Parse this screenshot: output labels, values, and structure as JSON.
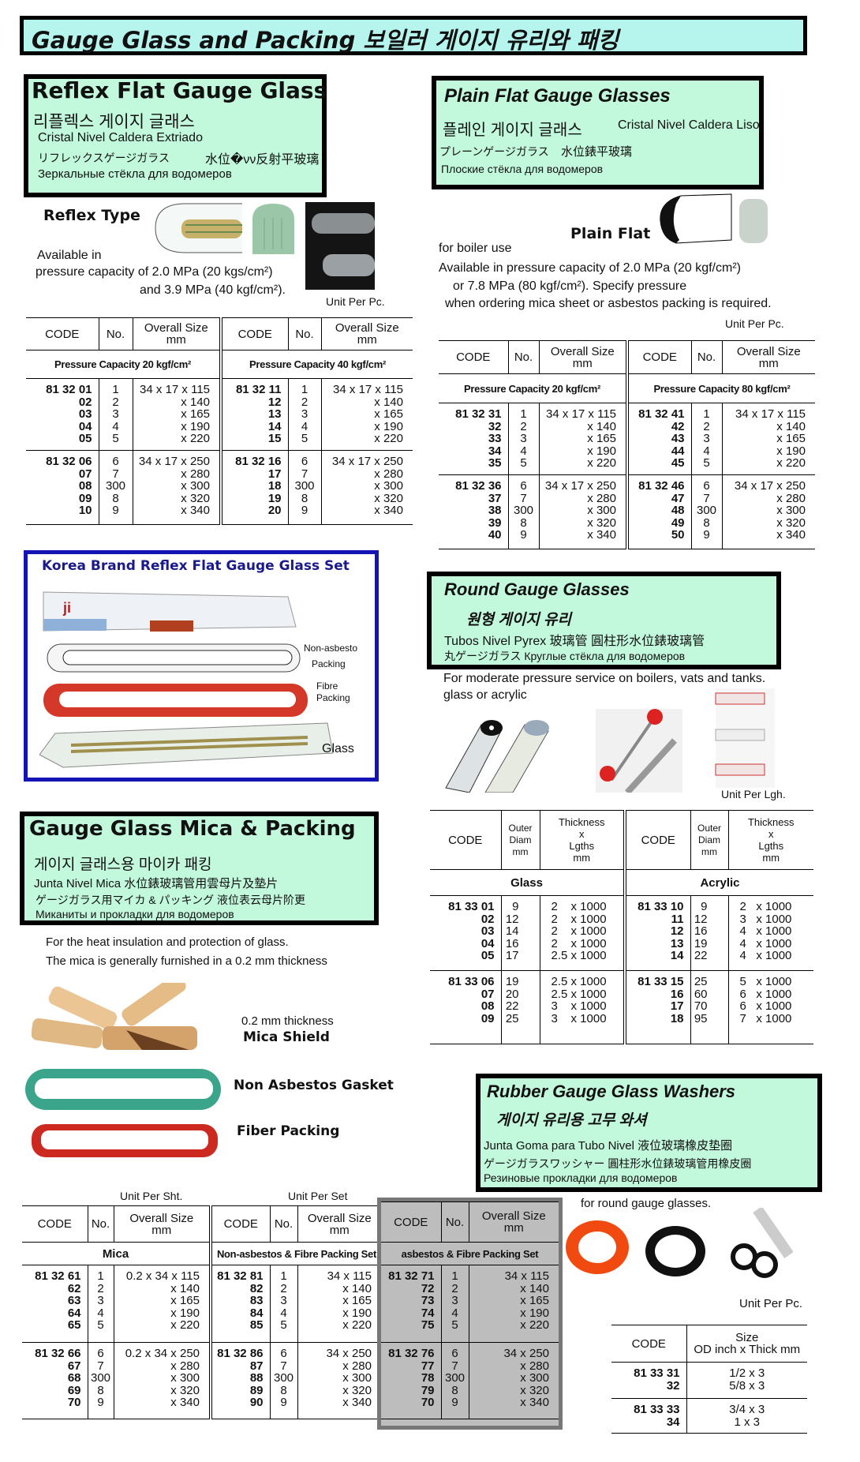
{
  "page_title": "Gauge Glass and Packing  보일러 게이지 유리와 패킹",
  "colors": {
    "title_bg": "#b5f5ee",
    "box_bg": "#c2f8dc",
    "korea_border": "#1414b4",
    "gray_table": "#bdbdbd"
  },
  "reflex": {
    "title": "Reflex Flat Gauge Glass",
    "korean": "리플렉스 게이지 글래스",
    "spanish": "Cristal Nivel Caldera Extriado",
    "japanese": "リフレックスゲージガラス",
    "chinese": "水位�νν反射平玻璃",
    "russian": "Зеркальные стёкла для водомеров",
    "type_label": "Reflex Type",
    "avail1": "Available  in",
    "avail2": "pressure capacity of 2.0 MPa  (20 kgs/cm²)",
    "avail3": "and 3.9 MPa (40 kgf/cm²).",
    "unit": "Unit Per Pc."
  },
  "plain": {
    "title": "Plain Flat Gauge Glasses",
    "korean": "플레인 게이지 글래스",
    "spanish": "Cristal Nivel Caldera Liso",
    "japanese": "プレーンゲージガラス",
    "chinese": "水位錶平玻璃",
    "russian": "Плоские стёкла для водомеров",
    "type_label": "Plain Flat",
    "line1": "for  boiler  use",
    "line2": "Available  in    pressure  capacity  of 2.0  MPa (20  kgf/cm²)",
    "line3": "or  7.8  MPa   (80 kgf/cm²). Specify pressure",
    "line4": "when ordering  mica sheet  or asbestos packing is required.",
    "unit": "Unit Per Pc."
  },
  "korea_set": {
    "title": "Korea Brand Reflex Flat Gauge Glass Set",
    "box_logo": "ji",
    "label_nonasbesto": "Non-asbesto",
    "label_packing1": "Packing",
    "label_fibre": "Fibre",
    "label_packing2": "Packing",
    "label_glass": "Glass"
  },
  "round": {
    "title": "Round Gauge Glasses",
    "korean": "원형 게이지 유리",
    "line1": "Tubos Nivel Pyrex   玻璃管  圓柱形水位錶玻璃管",
    "line2": "丸ゲージガラス  Круглые стёкла для водомеров",
    "desc1": "For  moderate pressure service on boilers, vats and tanks.",
    "desc2": "glass  or  acrylic",
    "unit": "Unit Per Lgh."
  },
  "mica": {
    "title": "Gauge Glass Mica & Packing",
    "korean": "게이지 글래스용 마이카 패킹",
    "line1": "Junta Nivel Mica  水位錶玻璃管用雲母片及墊片",
    "line2": "ゲージガラス用マイカ & パッキング  液位表云母片阶更",
    "russian": "Миканиты и прокладки для водомеров",
    "desc1": "For the heat insulation and protection of glass.",
    "desc2": "The mica is generally furnished in a 0.2 mm thickness",
    "thickness": "0.2 mm  thickness",
    "mica_shield": "Mica Shield",
    "gasket": "Non Asbestos Gasket",
    "fiber": "Fiber Packing",
    "unit_sht": "Unit Per Sht.",
    "unit_set": "Unit Per Set"
  },
  "rubber": {
    "title": "Rubber Gauge Glass Washers",
    "korean": "게이지 유리용 고무 와셔",
    "line1": "Junta Goma para Tubo Nivel    液位玻璃橡皮垫圈",
    "line2": "ゲージガラスワッシャー        圓柱形水位錶玻璃管用橡皮圈",
    "russian": "Резиновые прокладки для водомеров",
    "desc": "for round gauge glasses.",
    "unit": "Unit Per Pc."
  },
  "tables": {
    "reflex": {
      "headers": [
        "CODE",
        "No.",
        "Overall Size\nmm",
        "CODE",
        "No.",
        "Overall Size\nmm"
      ],
      "subheaders": [
        "Pressure Capacity 20 kgf/cm²",
        "Pressure Capacity 40 kgf/cm²"
      ],
      "groups": [
        [
          [
            "81 32 01",
            "02",
            "03",
            "04",
            "05"
          ],
          [
            "1",
            "2",
            "3",
            "4",
            "5"
          ],
          [
            "34 x 17 x 115",
            "x 140",
            "x 165",
            "x 190",
            "x 220"
          ],
          [
            "81 32 11",
            "12",
            "13",
            "14",
            "15"
          ],
          [
            "1",
            "2",
            "3",
            "4",
            "5"
          ],
          [
            "34 x 17 x 115",
            "x 140",
            "x 165",
            "x 190",
            "x 220"
          ]
        ],
        [
          [
            "81 32 06",
            "07",
            "08",
            "09",
            "10"
          ],
          [
            "6",
            "7",
            "300",
            "8",
            "9"
          ],
          [
            "34 x 17 x 250",
            "x 280",
            "x 300",
            "x 320",
            "x 340"
          ],
          [
            "81 32 16",
            "17",
            "18",
            "19",
            "20"
          ],
          [
            "6",
            "7",
            "300",
            "8",
            "9"
          ],
          [
            "34 x 17 x 250",
            "x 280",
            "x 300",
            "x 320",
            "x 340"
          ]
        ]
      ]
    },
    "plain": {
      "headers": [
        "CODE",
        "No.",
        "Overall Size\nmm",
        "CODE",
        "No.",
        "Overall Size\nmm"
      ],
      "subheaders": [
        "Pressure  Capacity 20 kgf/cm²",
        "Pressure  Capacity 80 kgf/cm²"
      ],
      "groups": [
        [
          [
            "81 32 31",
            "32",
            "33",
            "34",
            "35"
          ],
          [
            "1",
            "2",
            "3",
            "4",
            "5"
          ],
          [
            "34 x 17 x 115",
            "x 140",
            "x 165",
            "x 190",
            "x 220"
          ],
          [
            "81 32 41",
            "42",
            "43",
            "44",
            "45"
          ],
          [
            "1",
            "2",
            "3",
            "4",
            "5"
          ],
          [
            "34 x 17 x 115",
            "x 140",
            "x 165",
            "x 190",
            "x 220"
          ]
        ],
        [
          [
            "81 32 36",
            "37",
            "38",
            "39",
            "40"
          ],
          [
            "6",
            "7",
            "300",
            "8",
            "9"
          ],
          [
            "34 x 17 x 250",
            "x 280",
            "x 300",
            "x 320",
            "x 340"
          ],
          [
            "81 32 46",
            "47",
            "48",
            "49",
            "50"
          ],
          [
            "6",
            "7",
            "300",
            "8",
            "9"
          ],
          [
            "34 x 17 x 250",
            "x 280",
            "x 300",
            "x 320",
            "x 340"
          ]
        ]
      ]
    },
    "round": {
      "headers": [
        "CODE",
        "Outer\nDiam\nmm",
        "Thickness\nx\nLgths\nmm",
        "CODE",
        "Outer\nDiam\nmm",
        "Thickness\nx\nLgths\nmm"
      ],
      "subheaders": [
        "Glass",
        "Acrylic"
      ],
      "groups": [
        [
          [
            "81 33 01",
            "02",
            "03",
            "04",
            "05"
          ],
          [
            "9",
            "12",
            "14",
            "16",
            "17"
          ],
          [
            "2    x 1000",
            "2    x 1000",
            "2    x 1000",
            "2    x 1000",
            "2.5 x 1000"
          ],
          [
            "81 33 10",
            "11",
            "12",
            "13",
            "14"
          ],
          [
            "9",
            "12",
            "16",
            "19",
            "22"
          ],
          [
            "2   x 1000",
            "3   x 1000",
            "4   x 1000",
            "4   x 1000",
            "4   x 1000"
          ]
        ],
        [
          [
            "81 33 06",
            "07",
            "08",
            "09"
          ],
          [
            "19",
            "20",
            "22",
            "25"
          ],
          [
            "2.5 x 1000",
            "2.5 x 1000",
            "3    x 1000",
            "3    x 1000"
          ],
          [
            "81 33 15",
            "16",
            "17",
            "18"
          ],
          [
            "25",
            "60",
            "70",
            "95"
          ],
          [
            "5   x 1000",
            "6   x 1000",
            "6   x 1000",
            "7   x 1000"
          ]
        ]
      ]
    },
    "mica": {
      "headers": [
        "CODE",
        "No.",
        "Overall Size\nmm",
        "CODE",
        "No.",
        "Overall Size\nmm"
      ],
      "subheaders": [
        "Mica",
        "Non-asbestos & Fibre Packing Set"
      ],
      "groups": [
        [
          [
            "81 32 61",
            "62",
            "63",
            "64",
            "65"
          ],
          [
            "1",
            "2",
            "3",
            "4",
            "5"
          ],
          [
            "0.2 x 34 x 115",
            "x 140",
            "x 165",
            "x 190",
            "x 220"
          ],
          [
            "81 32 81",
            "82",
            "83",
            "84",
            "85"
          ],
          [
            "1",
            "2",
            "3",
            "4",
            "5"
          ],
          [
            "34 x 115",
            "x 140",
            "x 165",
            "x 190",
            "x 220"
          ]
        ],
        [
          [
            "81 32 66",
            "67",
            "68",
            "69",
            "70"
          ],
          [
            "6",
            "7",
            "300",
            "8",
            "9"
          ],
          [
            "0.2 x 34 x 250",
            "x 280",
            "x 300",
            "x 320",
            "x 340"
          ],
          [
            "81 32 86",
            "87",
            "88",
            "89",
            "90"
          ],
          [
            "6",
            "7",
            "300",
            "8",
            "9"
          ],
          [
            "34 x 250",
            "x 280",
            "x 300",
            "x 320",
            "x 340"
          ]
        ]
      ]
    },
    "asbestos": {
      "headers": [
        "CODE",
        "No.",
        "Overall Size\nmm"
      ],
      "subheaders": [
        "asbestos &  Fibre Packing Set"
      ],
      "groups": [
        [
          [
            "81 32 71",
            "72",
            "73",
            "74",
            "75"
          ],
          [
            "1",
            "2",
            "3",
            "4",
            "5"
          ],
          [
            "34 x 115",
            "x 140",
            "x 165",
            "x 190",
            "x 220"
          ]
        ],
        [
          [
            "81 32 76",
            "77",
            "78",
            "79",
            "70"
          ],
          [
            "6",
            "7",
            "300",
            "8",
            "9"
          ],
          [
            "34 x 250",
            "x 280",
            "x 300",
            "x 320",
            "x 340"
          ]
        ]
      ]
    },
    "washers": {
      "headers": [
        "CODE",
        "Size\nOD inch x Thick mm"
      ],
      "subheaders": [],
      "groups": [
        [
          [
            "81 33 31",
            "32"
          ],
          [
            "1/2 x 3",
            "5/8 x 3"
          ]
        ],
        [
          [
            "81 33 33",
            "34"
          ],
          [
            "3/4 x 3",
            "1 x 3"
          ]
        ]
      ]
    }
  }
}
